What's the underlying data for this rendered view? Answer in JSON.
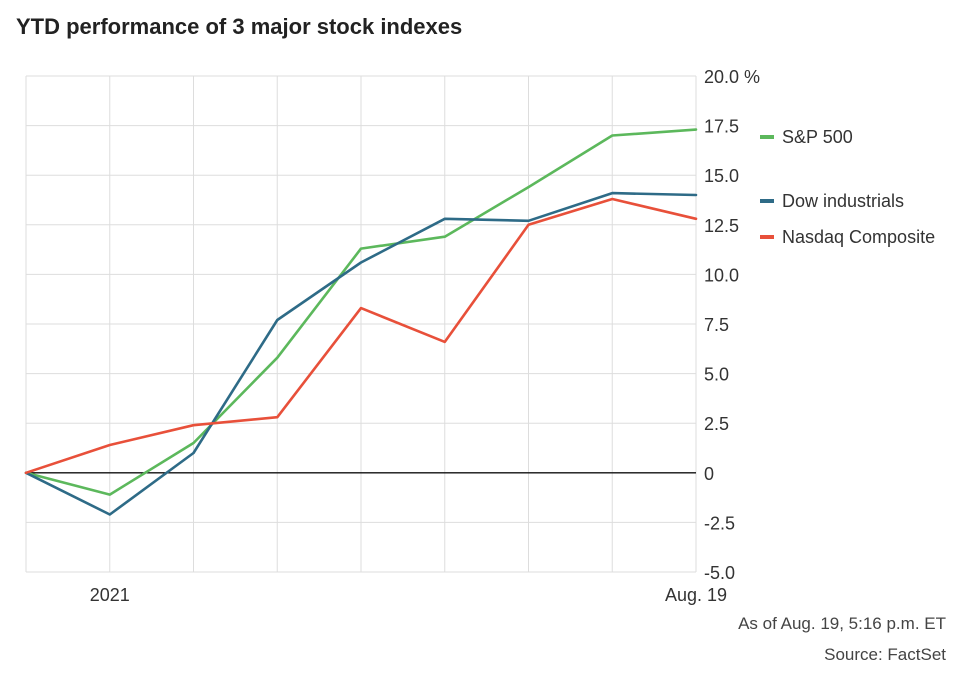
{
  "header": {
    "title": "YTD performance of 3 major stock indexes"
  },
  "footer": {
    "as_of": "As of Aug. 19, 5:16 p.m. ET",
    "source": "Source: FactSet"
  },
  "chart_data": {
    "type": "line",
    "title": "YTD performance of 3 major stock indexes",
    "xlabel": "",
    "ylabel": "",
    "x": [
      0,
      1,
      2,
      3,
      4,
      5,
      6,
      7,
      8
    ],
    "x_tick_labels": [
      {
        "x": 1,
        "label": "2021"
      },
      {
        "x": 8,
        "label": "Aug. 19"
      }
    ],
    "ylim": [
      -5,
      20
    ],
    "y_ticks": [
      20,
      17.5,
      15,
      12.5,
      10,
      7.5,
      5,
      2.5,
      0,
      -2.5,
      -5
    ],
    "y_tick_labels": [
      "20.0 %",
      "17.5",
      "15.0",
      "12.5",
      "10.0",
      "7.5",
      "5.0",
      "2.5",
      "0",
      "-2.5",
      "-5.0"
    ],
    "grid": true,
    "zero_line": true,
    "legend_position": "right",
    "series": [
      {
        "name": "S&P 500",
        "color": "#5cb85c",
        "values": [
          0,
          -1.1,
          1.5,
          5.8,
          11.3,
          11.9,
          14.4,
          17.0,
          17.3
        ]
      },
      {
        "name": "Dow industrials",
        "color": "#2e6b87",
        "values": [
          0,
          -2.1,
          1.0,
          7.7,
          10.6,
          12.8,
          12.7,
          14.1,
          14.0
        ]
      },
      {
        "name": "Nasdaq Composite",
        "color": "#e8503a",
        "values": [
          0,
          1.4,
          2.4,
          2.8,
          8.3,
          6.6,
          12.5,
          13.8,
          12.8
        ]
      }
    ]
  }
}
